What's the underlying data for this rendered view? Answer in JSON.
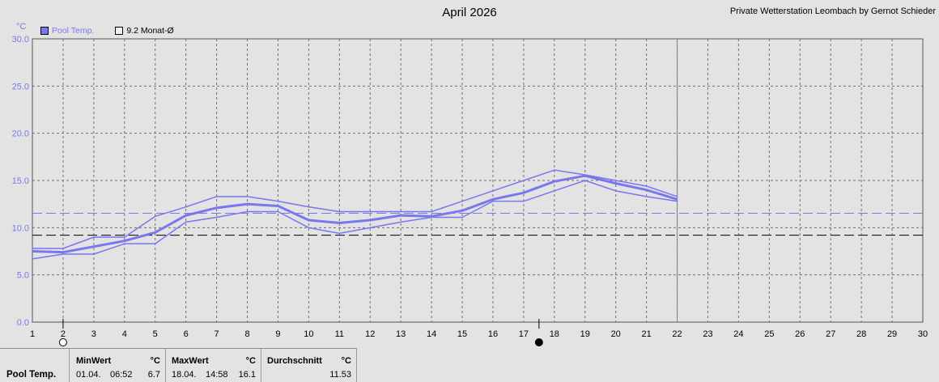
{
  "title": "April 2026",
  "station": "Private Wetterstation Leombach by Gernot Schieder",
  "legend": {
    "pool_label": "Pool Temp.",
    "avg_label": "9.2 Monat-Ø"
  },
  "colors": {
    "series": "#7878ee",
    "avg_line": "#000000",
    "mean_line": "#7878ee",
    "grid": "#707070",
    "plot_bg": "#e3e3e3"
  },
  "chart_data": {
    "type": "line",
    "ylabel": "°C",
    "ylim": [
      0,
      30
    ],
    "xlim": [
      1,
      30
    ],
    "y_ticks": [
      "0.0",
      "5.0",
      "10.0",
      "15.0",
      "20.0",
      "25.0",
      "30.0"
    ],
    "x_ticks": [
      "1",
      "2",
      "3",
      "4",
      "5",
      "6",
      "7",
      "8",
      "9",
      "10",
      "11",
      "12",
      "13",
      "14",
      "15",
      "16",
      "17",
      "18",
      "19",
      "20",
      "21",
      "22",
      "23",
      "24",
      "25",
      "26",
      "27",
      "28",
      "29",
      "30"
    ],
    "grid": true,
    "x": [
      1,
      2,
      3,
      4,
      5,
      6,
      7,
      8,
      9,
      10,
      11,
      12,
      13,
      14,
      15,
      16,
      17,
      18,
      19,
      20,
      21,
      22
    ],
    "series": [
      {
        "values": [
          7.8,
          7.8,
          9.0,
          9.0,
          11.2,
          12.2,
          13.3,
          13.3,
          12.8,
          12.2,
          11.7,
          11.7,
          11.7,
          11.7,
          12.8,
          13.9,
          15.0,
          16.1,
          15.6,
          15.0,
          14.4,
          13.3
        ]
      },
      {
        "values": [
          7.5,
          7.4,
          8.0,
          8.6,
          9.5,
          11.3,
          12.1,
          12.5,
          12.3,
          10.8,
          10.5,
          10.8,
          11.3,
          11.2,
          11.8,
          13.0,
          13.7,
          14.9,
          15.5,
          14.7,
          14.0,
          13.0
        ]
      },
      {
        "values": [
          6.7,
          7.2,
          7.2,
          8.3,
          8.3,
          10.6,
          11.1,
          11.7,
          11.7,
          10.0,
          9.4,
          10.0,
          10.6,
          11.1,
          11.1,
          12.8,
          12.8,
          13.9,
          15.0,
          13.9,
          13.3,
          12.8
        ]
      }
    ],
    "reference_lines": [
      {
        "label": "9.2 Monat-Ø",
        "value": 9.2,
        "style": "dashed",
        "color": "#000000"
      },
      {
        "value": 11.53,
        "style": "dashed",
        "color": "#7878ee"
      }
    ],
    "current_day": 22,
    "moon_phases": [
      {
        "day": 2,
        "phase": "full"
      },
      {
        "day": 17.5,
        "phase": "new"
      }
    ]
  },
  "stats": {
    "row_label": "Pool Temp.",
    "min": {
      "header": "MinWert",
      "unit": "°C",
      "date": "01.04.",
      "time": "06:52",
      "value": "6.7"
    },
    "max": {
      "header": "MaxWert",
      "unit": "°C",
      "date": "18.04.",
      "time": "14:58",
      "value": "16.1"
    },
    "avg": {
      "header": "Durchschnitt",
      "unit": "°C",
      "value": "11.53"
    }
  }
}
